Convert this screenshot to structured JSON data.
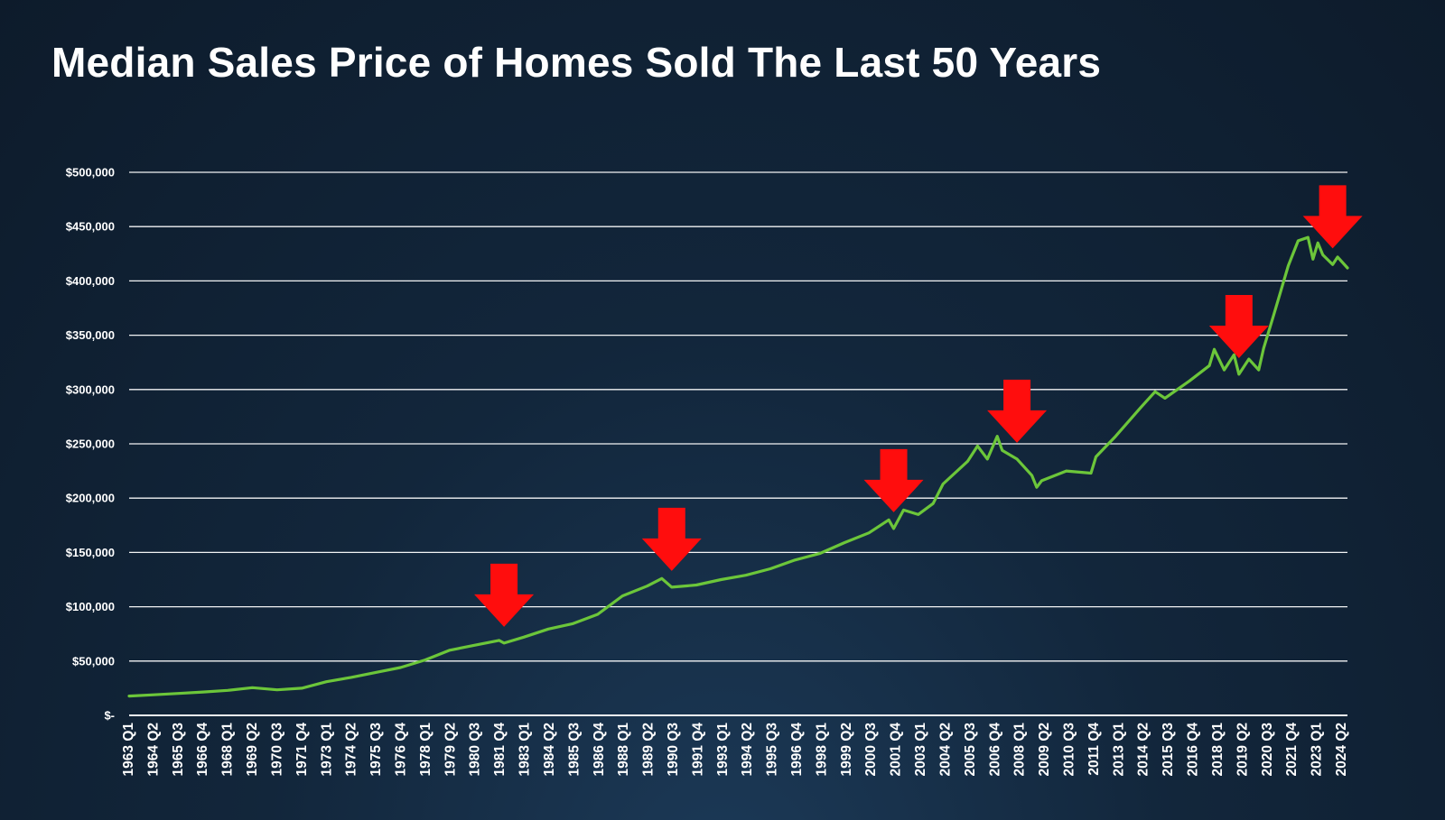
{
  "chart_data": {
    "type": "line",
    "title": "Median Sales Price of Homes Sold The Last 50 Years",
    "ylim": [
      0,
      500000
    ],
    "y_ticks": [
      0,
      50000,
      100000,
      150000,
      200000,
      250000,
      300000,
      350000,
      400000,
      450000,
      500000
    ],
    "y_tick_labels": [
      "$-",
      "$50,000",
      "$100,000",
      "$150,000",
      "$200,000",
      "$250,000",
      "$300,000",
      "$350,000",
      "$400,000",
      "$450,000",
      "$500,000"
    ],
    "grid": true,
    "x_tick_labels": [
      "1963 Q1",
      "1964 Q2",
      "1965 Q3",
      "1966 Q4",
      "1968 Q1",
      "1969 Q2",
      "1970 Q3",
      "1971 Q4",
      "1973 Q1",
      "1974 Q2",
      "1975 Q3",
      "1976 Q4",
      "1978 Q1",
      "1979 Q2",
      "1980 Q3",
      "1981 Q4",
      "1983 Q1",
      "1984 Q2",
      "1985 Q3",
      "1986 Q4",
      "1988 Q1",
      "1989 Q2",
      "1990 Q3",
      "1991 Q4",
      "1993 Q1",
      "1994 Q2",
      "1995 Q3",
      "1996 Q4",
      "1998 Q1",
      "1999 Q2",
      "2000 Q3",
      "2001 Q4",
      "2003 Q1",
      "2004 Q2",
      "2005 Q3",
      "2006 Q4",
      "2008 Q1",
      "2009 Q2",
      "2010 Q3",
      "2011 Q4",
      "2013 Q1",
      "2014 Q2",
      "2015 Q3",
      "2016 Q4",
      "2018 Q1",
      "2019 Q2",
      "2020 Q3",
      "2021 Q4",
      "2023 Q1",
      "2024 Q2"
    ],
    "series": [
      {
        "color": "#6cc63a",
        "points": [
          [
            "1963 Q1",
            17800
          ],
          [
            "1964 Q2",
            18900
          ],
          [
            "1965 Q3",
            20200
          ],
          [
            "1966 Q4",
            21500
          ],
          [
            "1968 Q1",
            23000
          ],
          [
            "1969 Q2",
            25500
          ],
          [
            "1970 Q3",
            23500
          ],
          [
            "1971 Q4",
            25000
          ],
          [
            "1973 Q1",
            31000
          ],
          [
            "1974 Q2",
            35000
          ],
          [
            "1975 Q3",
            39500
          ],
          [
            "1976 Q4",
            44000
          ],
          [
            "1978 Q1",
            51000
          ],
          [
            "1979 Q2",
            60000
          ],
          [
            "1980 Q3",
            64500
          ],
          [
            "1981 Q4",
            69000
          ],
          [
            "1982 Q1",
            66500
          ],
          [
            "1983 Q1",
            72000
          ],
          [
            "1984 Q2",
            79500
          ],
          [
            "1985 Q3",
            84500
          ],
          [
            "1986 Q4",
            93000
          ],
          [
            "1988 Q1",
            110000
          ],
          [
            "1989 Q2",
            119000
          ],
          [
            "1990 Q1",
            126000
          ],
          [
            "1990 Q3",
            118000
          ],
          [
            "1991 Q4",
            120000
          ],
          [
            "1993 Q1",
            125000
          ],
          [
            "1994 Q2",
            129000
          ],
          [
            "1995 Q3",
            135000
          ],
          [
            "1996 Q4",
            143000
          ],
          [
            "1998 Q1",
            149000
          ],
          [
            "1999 Q2",
            159000
          ],
          [
            "2000 Q3",
            168000
          ],
          [
            "2001 Q3",
            180000
          ],
          [
            "2001 Q4",
            172000
          ],
          [
            "2002 Q2",
            189000
          ],
          [
            "2003 Q1",
            185000
          ],
          [
            "2003 Q4",
            195000
          ],
          [
            "2004 Q2",
            213000
          ],
          [
            "2005 Q3",
            234000
          ],
          [
            "2006 Q1",
            248000
          ],
          [
            "2006 Q3",
            236000
          ],
          [
            "2007 Q1",
            257000
          ],
          [
            "2007 Q2",
            244000
          ],
          [
            "2008 Q1",
            236000
          ],
          [
            "2008 Q4",
            221000
          ],
          [
            "2009 Q1",
            210000
          ],
          [
            "2009 Q2",
            216000
          ],
          [
            "2010 Q3",
            225000
          ],
          [
            "2011 Q4",
            223000
          ],
          [
            "2012 Q1",
            238000
          ],
          [
            "2013 Q1",
            257000
          ],
          [
            "2014 Q2",
            283000
          ],
          [
            "2015 Q1",
            298000
          ],
          [
            "2015 Q3",
            292000
          ],
          [
            "2016 Q4",
            308000
          ],
          [
            "2017 Q4",
            322000
          ],
          [
            "2018 Q1",
            337000
          ],
          [
            "2018 Q3",
            318000
          ],
          [
            "2019 Q1",
            332000
          ],
          [
            "2019 Q2",
            314000
          ],
          [
            "2019 Q4",
            328000
          ],
          [
            "2020 Q2",
            318000
          ],
          [
            "2020 Q3",
            338000
          ],
          [
            "2021 Q1",
            368000
          ],
          [
            "2021 Q4",
            414000
          ],
          [
            "2022 Q2",
            437000
          ],
          [
            "2022 Q4",
            440000
          ],
          [
            "2023 Q1",
            420000
          ],
          [
            "2023 Q2",
            435000
          ],
          [
            "2023 Q3",
            424000
          ],
          [
            "2024 Q1",
            415000
          ],
          [
            "2024 Q2",
            422000
          ],
          [
            "2024 Q4",
            412000
          ]
        ]
      }
    ],
    "annotations": [
      {
        "type": "down-arrow",
        "x": "1982 Q1",
        "color": "#ff0d0d"
      },
      {
        "type": "down-arrow",
        "x": "1990 Q3",
        "color": "#ff0d0d"
      },
      {
        "type": "down-arrow",
        "x": "2001 Q4",
        "color": "#ff0d0d"
      },
      {
        "type": "down-arrow",
        "x": "2008 Q1",
        "color": "#ff0d0d"
      },
      {
        "type": "down-arrow",
        "x": "2019 Q2",
        "color": "#ff0d0d"
      },
      {
        "type": "down-arrow",
        "x": "2024 Q1",
        "color": "#ff0d0d"
      }
    ],
    "colors": {
      "grid": "#ffffff",
      "line": "#6cc63a",
      "arrow": "#ff0d0d"
    }
  }
}
